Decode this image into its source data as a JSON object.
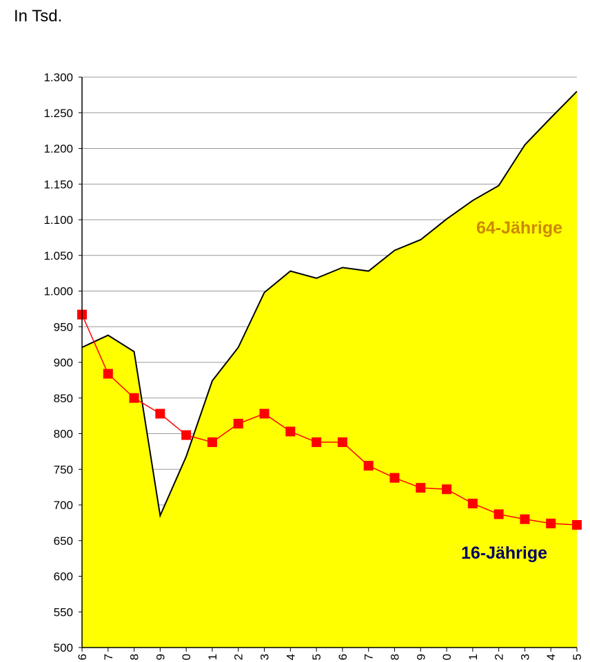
{
  "chart_data": {
    "type": "combo",
    "title": "In Tsd.",
    "categories": [
      "6",
      "7",
      "8",
      "9",
      "0",
      "1",
      "2",
      "3",
      "4",
      "5",
      "6",
      "7",
      "8",
      "9",
      "0",
      "1",
      "2",
      "3",
      "4",
      "5"
    ],
    "series": [
      {
        "name": "64-Jährige",
        "type": "area",
        "color": "#ffff00",
        "label_color": "#cc8a00",
        "values": [
          921,
          938,
          915,
          685,
          768,
          874,
          921,
          998,
          1028,
          1018,
          1033,
          1028,
          1057,
          1072,
          1101,
          1127,
          1148,
          1205,
          1243,
          1280
        ]
      },
      {
        "name": "16-Jährige",
        "type": "line",
        "color": "#ff0000",
        "label_color": "#000066",
        "values": [
          967,
          884,
          850,
          828,
          798,
          788,
          814,
          828,
          803,
          788,
          788,
          755,
          738,
          724,
          722,
          702,
          687,
          680,
          674,
          672
        ]
      }
    ],
    "ylim": [
      500,
      1300
    ],
    "yticks": [
      500,
      550,
      600,
      650,
      700,
      750,
      800,
      850,
      900,
      950,
      {
        "value": 1000,
        "label": "1.000"
      },
      {
        "value": 1050,
        "label": "1.050"
      },
      {
        "value": 1100,
        "label": "1.100"
      },
      {
        "value": 1150,
        "label": "1.150"
      },
      {
        "value": 1200,
        "label": "1.200"
      },
      {
        "value": 1250,
        "label": "1.250"
      },
      {
        "value": 1300,
        "label": "1.300"
      }
    ],
    "grid": true
  }
}
